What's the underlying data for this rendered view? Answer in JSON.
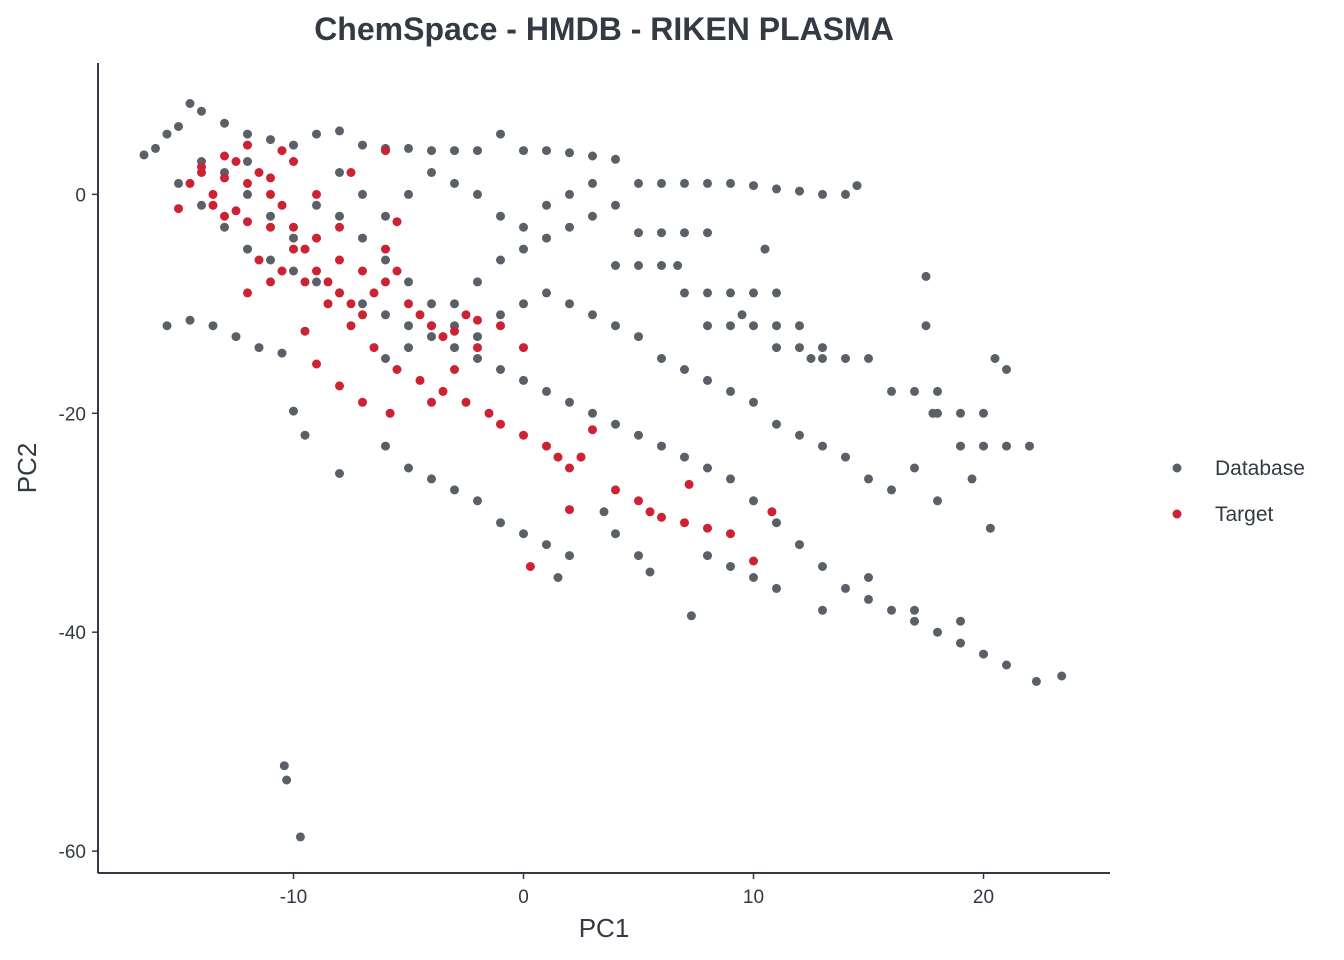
{
  "chart_data": {
    "type": "scatter",
    "title": "ChemSpace - HMDB - RIKEN PLASMA",
    "xlabel": "PC1",
    "ylabel": "PC2",
    "xlim": [
      -18.5,
      25.5
    ],
    "ylim": [
      -62,
      12
    ],
    "x_ticks": [
      -10,
      0,
      10,
      20
    ],
    "y_ticks": [
      0,
      -20,
      -40,
      -60
    ],
    "x_tick_labels": [
      "-10",
      "0",
      "10",
      "20"
    ],
    "y_tick_labels": [
      "0",
      "-20",
      "-40",
      "-60"
    ],
    "grid": false,
    "legend_position": "right",
    "series": [
      {
        "name": "Database",
        "color": "#5a6068",
        "points": [
          [
            -16.5,
            3.6
          ],
          [
            -16,
            4.2
          ],
          [
            -15.5,
            5.5
          ],
          [
            -15,
            6.2
          ],
          [
            -14.5,
            8.3
          ],
          [
            -14,
            7.6
          ],
          [
            -13,
            6.5
          ],
          [
            -12,
            5.5
          ],
          [
            -11,
            5
          ],
          [
            -10,
            4.5
          ],
          [
            -9,
            5.5
          ],
          [
            -8,
            5.8
          ],
          [
            -7,
            4.5
          ],
          [
            -6,
            4.2
          ],
          [
            -5,
            4.2
          ],
          [
            -4,
            4
          ],
          [
            -3,
            4
          ],
          [
            -2,
            4
          ],
          [
            -1,
            5.5
          ],
          [
            0,
            4
          ],
          [
            1,
            4
          ],
          [
            2,
            3.8
          ],
          [
            3,
            3.5
          ],
          [
            4,
            3.2
          ],
          [
            5,
            1
          ],
          [
            6,
            1
          ],
          [
            7,
            1
          ],
          [
            8,
            1
          ],
          [
            9,
            1
          ],
          [
            10,
            0.8
          ],
          [
            11,
            0.5
          ],
          [
            12,
            0.3
          ],
          [
            13,
            0
          ],
          [
            14,
            0
          ],
          [
            14.5,
            0.8
          ],
          [
            5,
            -3.5
          ],
          [
            6,
            -3.5
          ],
          [
            7,
            -3.5
          ],
          [
            8,
            -3.5
          ],
          [
            10.5,
            -5
          ],
          [
            4,
            -6.5
          ],
          [
            5,
            -6.5
          ],
          [
            6,
            -6.5
          ],
          [
            6.7,
            -6.5
          ],
          [
            7,
            -9
          ],
          [
            8,
            -9
          ],
          [
            9,
            -9
          ],
          [
            10,
            -9
          ],
          [
            11,
            -9
          ],
          [
            9.5,
            -11
          ],
          [
            8,
            -12
          ],
          [
            9,
            -12
          ],
          [
            10,
            -12
          ],
          [
            11,
            -12
          ],
          [
            12,
            -12
          ],
          [
            11,
            -14
          ],
          [
            12,
            -14
          ],
          [
            13,
            -14
          ],
          [
            12.5,
            -15
          ],
          [
            13,
            -15
          ],
          [
            14,
            -15
          ],
          [
            15,
            -15
          ],
          [
            16,
            -18
          ],
          [
            17,
            -18
          ],
          [
            18,
            -18
          ],
          [
            17.5,
            -7.5
          ],
          [
            17.5,
            -12
          ],
          [
            17.8,
            -20
          ],
          [
            18,
            -20
          ],
          [
            19,
            -20
          ],
          [
            20,
            -20
          ],
          [
            19,
            -23
          ],
          [
            20,
            -23
          ],
          [
            21,
            -23
          ],
          [
            22,
            -23
          ],
          [
            20.5,
            -15
          ],
          [
            21,
            -16
          ],
          [
            -14,
            -1
          ],
          [
            -13,
            -3
          ],
          [
            -12,
            -5
          ],
          [
            -11,
            -6
          ],
          [
            -10,
            -7
          ],
          [
            -9,
            -8
          ],
          [
            -8,
            -9
          ],
          [
            -7,
            -10
          ],
          [
            -6,
            -11
          ],
          [
            -5,
            -12
          ],
          [
            -4,
            -13
          ],
          [
            -3,
            -14
          ],
          [
            -2,
            -15
          ],
          [
            -1,
            -16
          ],
          [
            0,
            -17
          ],
          [
            1,
            -18
          ],
          [
            2,
            -19
          ],
          [
            3,
            -20
          ],
          [
            4,
            -21
          ],
          [
            5,
            -22
          ],
          [
            6,
            -23
          ],
          [
            7,
            -24
          ],
          [
            8,
            -25
          ],
          [
            9,
            -26
          ],
          [
            10,
            -28
          ],
          [
            11,
            -30
          ],
          [
            12,
            -32
          ],
          [
            13,
            -34
          ],
          [
            14,
            -36
          ],
          [
            15,
            -37
          ],
          [
            16,
            -38
          ],
          [
            17,
            -39
          ],
          [
            18,
            -40
          ],
          [
            19,
            -41
          ],
          [
            20,
            -42
          ],
          [
            21,
            -43
          ],
          [
            22.3,
            -44.5
          ],
          [
            23.4,
            -44
          ],
          [
            -15.5,
            -12
          ],
          [
            -14.5,
            -11.5
          ],
          [
            -13.5,
            -12
          ],
          [
            -12.5,
            -13
          ],
          [
            -11.5,
            -14
          ],
          [
            -10.5,
            -14.5
          ],
          [
            -10,
            -19.8
          ],
          [
            -9.5,
            -22
          ],
          [
            -8,
            -25.5
          ],
          [
            -6,
            -23
          ],
          [
            -5,
            -25
          ],
          [
            -4,
            -26
          ],
          [
            -3,
            -27
          ],
          [
            -2,
            -28
          ],
          [
            -1,
            -30
          ],
          [
            0,
            -31
          ],
          [
            1,
            -32
          ],
          [
            1.5,
            -35
          ],
          [
            2,
            -33
          ],
          [
            3.5,
            -29
          ],
          [
            4,
            -31
          ],
          [
            5,
            -33
          ],
          [
            5.5,
            -34.5
          ],
          [
            7.3,
            -38.5
          ],
          [
            8,
            -33
          ],
          [
            9,
            -34
          ],
          [
            10,
            -35
          ],
          [
            11,
            -36
          ],
          [
            13,
            -38
          ],
          [
            15,
            -35
          ],
          [
            17,
            -38
          ],
          [
            19,
            -39
          ],
          [
            20.3,
            -30.5
          ],
          [
            19.5,
            -26
          ],
          [
            17,
            -25
          ],
          [
            18,
            -28
          ],
          [
            -10.4,
            -52.2
          ],
          [
            -10.3,
            -53.5
          ],
          [
            -9.7,
            -58.7
          ],
          [
            -6,
            -15
          ],
          [
            -5,
            -14
          ],
          [
            -4,
            -12
          ],
          [
            -3,
            -10
          ],
          [
            -2,
            -8
          ],
          [
            -1,
            -6
          ],
          [
            0,
            -5
          ],
          [
            1,
            -4
          ],
          [
            2,
            -3
          ],
          [
            3,
            -2
          ],
          [
            4,
            -1
          ],
          [
            -8,
            -2
          ],
          [
            -7,
            -4
          ],
          [
            -6,
            -6
          ],
          [
            -5,
            -8
          ],
          [
            -4,
            -10
          ],
          [
            -3,
            -12
          ],
          [
            -2,
            -13
          ],
          [
            -1,
            -11
          ],
          [
            0,
            -10
          ],
          [
            1,
            -9
          ],
          [
            2,
            -10
          ],
          [
            3,
            -11
          ],
          [
            4,
            -12
          ],
          [
            5,
            -13
          ],
          [
            6,
            -15
          ],
          [
            7,
            -16
          ],
          [
            8,
            -17
          ],
          [
            9,
            -18
          ],
          [
            10,
            -19
          ],
          [
            11,
            -21
          ],
          [
            12,
            -22
          ],
          [
            13,
            -23
          ],
          [
            14,
            -24
          ],
          [
            15,
            -26
          ],
          [
            16,
            -27
          ],
          [
            -12,
            0
          ],
          [
            -11,
            -2
          ],
          [
            -10,
            -4
          ],
          [
            -9,
            -1
          ],
          [
            -8,
            2
          ],
          [
            -7,
            0
          ],
          [
            -6,
            -2
          ],
          [
            -5,
            0
          ],
          [
            -4,
            2
          ],
          [
            -3,
            1
          ],
          [
            -2,
            0
          ],
          [
            -1,
            -2
          ],
          [
            0,
            -3
          ],
          [
            1,
            -1
          ],
          [
            2,
            0
          ],
          [
            3,
            1
          ],
          [
            -14,
            3
          ],
          [
            -13,
            2
          ],
          [
            -15,
            1
          ],
          [
            -12,
            3
          ]
        ]
      },
      {
        "name": "Target",
        "color": "#cc2233",
        "points": [
          [
            -15,
            -1.3
          ],
          [
            -14.5,
            1
          ],
          [
            -14,
            2.5
          ],
          [
            -13.5,
            0
          ],
          [
            -13,
            1.5
          ],
          [
            -12.5,
            3
          ],
          [
            -12,
            4.5
          ],
          [
            -11.5,
            2
          ],
          [
            -11,
            0
          ],
          [
            -10.5,
            -1
          ],
          [
            -10,
            -3
          ],
          [
            -9.5,
            -5
          ],
          [
            -9,
            -7
          ],
          [
            -8.5,
            -8
          ],
          [
            -8,
            -9
          ],
          [
            -7.5,
            -10
          ],
          [
            -7,
            -11
          ],
          [
            -6.5,
            -9
          ],
          [
            -6,
            -8
          ],
          [
            -5.5,
            -7
          ],
          [
            -5,
            -10
          ],
          [
            -4.5,
            -11
          ],
          [
            -4,
            -12
          ],
          [
            -3.5,
            -13
          ],
          [
            -3,
            -12.5
          ],
          [
            -2.5,
            -11
          ],
          [
            -2,
            -11.5
          ],
          [
            -13,
            -2
          ],
          [
            -12,
            -2.5
          ],
          [
            -11,
            -3
          ],
          [
            -10,
            -5
          ],
          [
            -9,
            -4
          ],
          [
            -8,
            -6
          ],
          [
            -7,
            -7
          ],
          [
            -6,
            -5
          ],
          [
            -11.5,
            -6
          ],
          [
            -10.5,
            -7
          ],
          [
            -9.5,
            -8
          ],
          [
            -8.5,
            -10
          ],
          [
            -7.5,
            -12
          ],
          [
            -6.5,
            -14
          ],
          [
            -5.5,
            -16
          ],
          [
            -4.5,
            -17
          ],
          [
            -3.5,
            -18
          ],
          [
            -2.5,
            -19
          ],
          [
            -1.5,
            -20
          ],
          [
            -1,
            -21
          ],
          [
            0,
            -22
          ],
          [
            1,
            -23
          ],
          [
            1.5,
            -24
          ],
          [
            2,
            -25
          ],
          [
            2.5,
            -24
          ],
          [
            3,
            -21.5
          ],
          [
            4,
            -27
          ],
          [
            5,
            -28
          ],
          [
            5.5,
            -29
          ],
          [
            6,
            -29.5
          ],
          [
            7.2,
            -26.5
          ],
          [
            7,
            -30
          ],
          [
            8,
            -30.5
          ],
          [
            9,
            -31
          ],
          [
            10,
            -33.5
          ],
          [
            10.8,
            -29
          ],
          [
            2,
            -28.8
          ],
          [
            0.3,
            -34
          ],
          [
            -9.5,
            -12.5
          ],
          [
            -9,
            -15.5
          ],
          [
            -8,
            -17.5
          ],
          [
            -7,
            -19
          ],
          [
            -5.8,
            -20
          ],
          [
            -4,
            -19
          ],
          [
            -3,
            -16
          ],
          [
            -2,
            -14
          ],
          [
            -1,
            -12
          ],
          [
            0,
            -14
          ],
          [
            -12,
            -9
          ],
          [
            -11,
            -8
          ],
          [
            -6,
            4
          ],
          [
            -5.5,
            -2.5
          ],
          [
            -7.5,
            2
          ],
          [
            -10,
            3
          ],
          [
            -9,
            0
          ],
          [
            -8,
            -3
          ],
          [
            -13.5,
            -1
          ],
          [
            -12.5,
            -1.5
          ],
          [
            -14,
            2
          ],
          [
            -13,
            3.5
          ],
          [
            -12,
            1
          ],
          [
            -11,
            1.5
          ],
          [
            -10.5,
            4
          ]
        ]
      }
    ]
  }
}
